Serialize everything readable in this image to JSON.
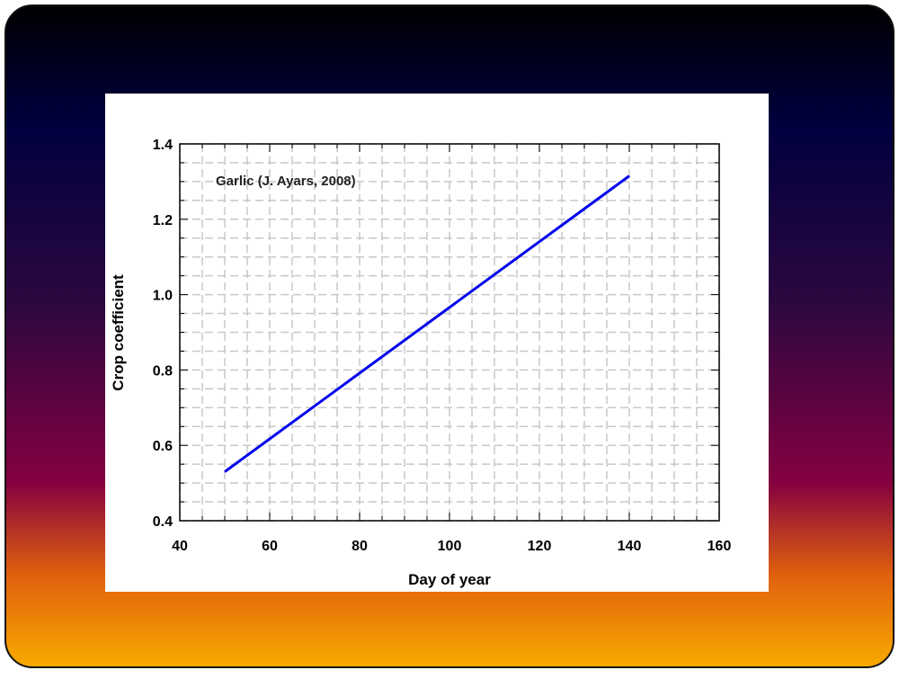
{
  "chart_data": {
    "type": "line",
    "annotation": "Garlic (J. Ayars, 2008)",
    "x_label": "Day of year",
    "y_label": "Crop coefficient",
    "x": [
      50,
      140
    ],
    "values": [
      0.53,
      1.315
    ],
    "color": "#0000ee",
    "xlim": [
      40,
      160
    ],
    "xticks": [
      40,
      60,
      80,
      100,
      120,
      140,
      160
    ],
    "ylim": [
      0.4,
      1.4
    ],
    "yticks": [
      0.4,
      0.6,
      0.8,
      {
        "value": 1,
        "label": "1.0"
      },
      1.2,
      1.4
    ],
    "grid": true
  }
}
